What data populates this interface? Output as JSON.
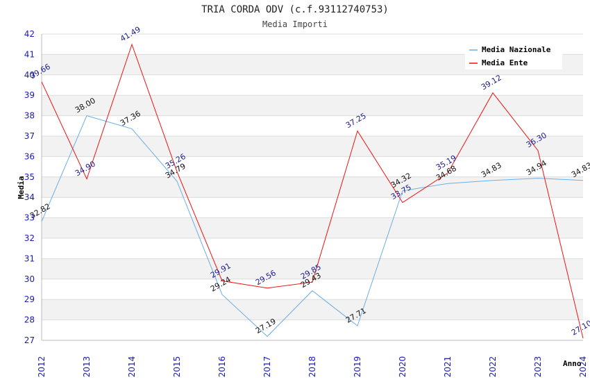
{
  "chart_data": {
    "type": "line",
    "title": "TRIA CORDA ODV (c.f.93112740753)",
    "subtitle": "Media Importi",
    "xlabel": "Anno",
    "ylabel": "Media",
    "categories": [
      "2012",
      "2013",
      "2014",
      "2015",
      "2016",
      "2017",
      "2018",
      "2019",
      "2020",
      "2021",
      "2022",
      "2023",
      "2024"
    ],
    "ylim": [
      27,
      42
    ],
    "yticks": [
      27,
      28,
      29,
      30,
      31,
      32,
      33,
      34,
      35,
      36,
      37,
      38,
      39,
      40,
      41,
      42
    ],
    "grid": true,
    "legend_position": "top-right",
    "series": [
      {
        "name": "Media Nazionale",
        "color": "#6aaee8",
        "label_color": "#111111",
        "values": [
          32.82,
          38.0,
          37.36,
          34.79,
          29.24,
          27.19,
          29.43,
          27.71,
          34.32,
          34.68,
          34.83,
          34.94,
          34.83
        ],
        "labels": [
          "32.82",
          "38.00",
          "37.36",
          "34.79",
          "29.24",
          "27.19",
          "29.43",
          "27.71",
          "34.32",
          "34.68",
          "34.83",
          "34.94",
          "34.83"
        ]
      },
      {
        "name": "Media Ente",
        "color": "#ee1111",
        "label_color": "#1a1a8c",
        "values": [
          39.66,
          34.9,
          41.49,
          35.26,
          29.91,
          29.56,
          29.85,
          37.25,
          33.75,
          35.19,
          39.12,
          36.3,
          27.1
        ],
        "labels": [
          "39.66",
          "34.90",
          "41.49",
          "35.26",
          "29.91",
          "29.56",
          "29.85",
          "37.25",
          "33.75",
          "35.19",
          "39.12",
          "36.30",
          "27.10"
        ]
      }
    ]
  }
}
